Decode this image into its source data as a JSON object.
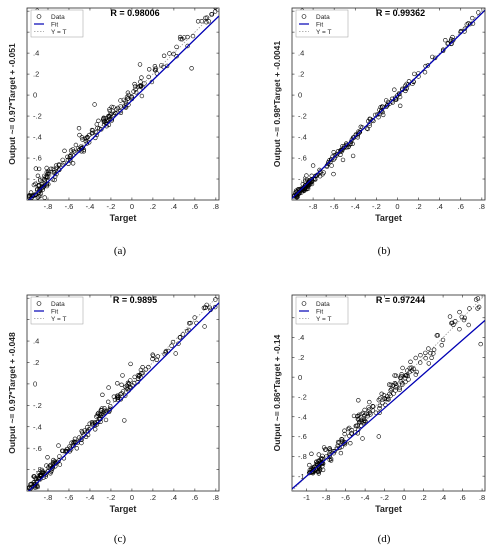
{
  "chart_data": [
    {
      "type": "scatter",
      "caption": "(a)",
      "r_label": "R = 0.98006",
      "xlabel": "Target",
      "ylabel": "Output ~= 0.97*Target + -0.051",
      "xlim": [
        -1.0,
        0.83
      ],
      "ylim": [
        -1.0,
        0.83
      ],
      "xticks": [
        -0.8,
        -0.6,
        -0.4,
        -0.2,
        0,
        0.2,
        0.4,
        0.6,
        0.8
      ],
      "yticks": [
        -0.8,
        -0.6,
        -0.4,
        -0.2,
        0,
        0.2,
        0.4,
        0.6,
        0.8
      ],
      "fit": {
        "slope": 0.97,
        "intercept": -0.051
      },
      "spread": 0.045,
      "seed": 11,
      "legend": [
        "Data",
        "Fit",
        "Y = T"
      ],
      "legend_position": "top-left",
      "fit_color": "#0000b4",
      "grid": false
    },
    {
      "type": "scatter",
      "caption": "(b)",
      "r_label": "R = 0.99362",
      "xlabel": "Target",
      "ylabel": "Output ~= 0.98*Target + -0.0041",
      "xlim": [
        -1.0,
        0.83
      ],
      "ylim": [
        -1.0,
        0.83
      ],
      "xticks": [
        -0.8,
        -0.6,
        -0.4,
        -0.2,
        0,
        0.2,
        0.4,
        0.6,
        0.8
      ],
      "yticks": [
        -0.8,
        -0.6,
        -0.4,
        -0.2,
        0,
        0.2,
        0.4,
        0.6,
        0.8
      ],
      "fit": {
        "slope": 0.98,
        "intercept": -0.0041
      },
      "spread": 0.022,
      "seed": 23,
      "legend": [
        "Data",
        "Fit",
        "Y = T"
      ],
      "legend_position": "top-left",
      "fit_color": "#0000b4",
      "grid": false
    },
    {
      "type": "scatter",
      "caption": "(c)",
      "r_label": "R = 0.9895",
      "xlabel": "Target",
      "ylabel": "Output ~= 0.97*Target + -0.048",
      "xlim": [
        -1.0,
        0.83
      ],
      "ylim": [
        -1.0,
        0.83
      ],
      "xticks": [
        -0.8,
        -0.6,
        -0.4,
        -0.2,
        0,
        0.2,
        0.4,
        0.6,
        0.8
      ],
      "yticks": [
        -0.8,
        -0.6,
        -0.4,
        -0.2,
        0,
        0.2,
        0.4,
        0.6,
        0.8
      ],
      "fit": {
        "slope": 0.97,
        "intercept": -0.048
      },
      "spread": 0.035,
      "seed": 37,
      "legend": [
        "Data",
        "Fit",
        "Y = T"
      ],
      "legend_position": "top-left",
      "fit_color": "#0000b4",
      "grid": false
    },
    {
      "type": "scatter",
      "caption": "(d)",
      "r_label": "R = 0.97244",
      "xlabel": "Target",
      "ylabel": "Output ~= 0.86*Target + -0.14",
      "xlim": [
        -1.15,
        0.83
      ],
      "ylim": [
        -1.15,
        0.83
      ],
      "xticks": [
        -1,
        -0.8,
        -0.6,
        -0.4,
        -0.2,
        0,
        0.2,
        0.4,
        0.6,
        0.8
      ],
      "yticks": [
        -1,
        -0.8,
        -0.6,
        -0.4,
        -0.2,
        0,
        0.2,
        0.4,
        0.6
      ],
      "fit": {
        "slope": 0.86,
        "intercept": -0.14
      },
      "spread": 0.05,
      "seed": 53,
      "legend": [
        "Data",
        "Fit",
        "Y = T"
      ],
      "legend_position": "top-left",
      "fit_color": "#0000b4",
      "grid": false
    }
  ]
}
